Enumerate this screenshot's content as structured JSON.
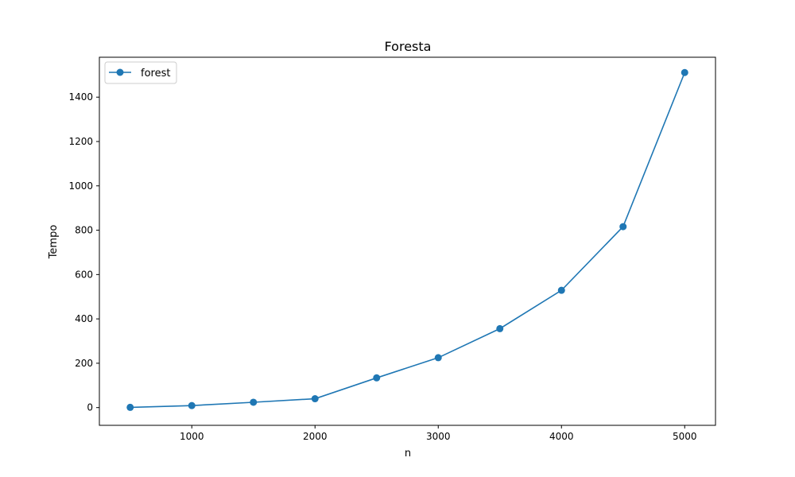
{
  "chart_data": {
    "type": "line",
    "title": "Foresta",
    "xlabel": "n",
    "ylabel": "Tempo",
    "xlim": [
      250,
      5250
    ],
    "ylim": [
      -80,
      1580
    ],
    "xticks": [
      1000,
      2000,
      3000,
      4000,
      5000
    ],
    "yticks": [
      0,
      200,
      400,
      600,
      800,
      1000,
      1200,
      1400
    ],
    "grid": false,
    "legend_position": "top-left",
    "series": [
      {
        "name": "forest",
        "color": "#1f77b4",
        "marker": "circle",
        "x": [
          500,
          1000,
          1500,
          2000,
          2500,
          3000,
          3500,
          4000,
          4500,
          5000
        ],
        "y": [
          1,
          9,
          24,
          40,
          134,
          225,
          356,
          529,
          816,
          1511
        ]
      }
    ]
  }
}
